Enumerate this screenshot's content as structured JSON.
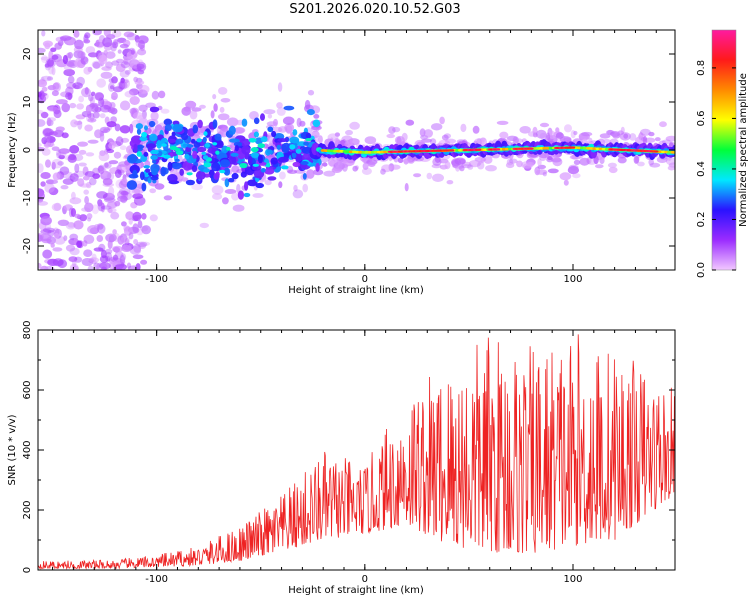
{
  "title": "S201.2026.020.10.52.G03",
  "chart_data": [
    {
      "type": "heatmap",
      "title": "S201.2026.020.10.52.G03",
      "xlabel": "Height of straight line (km)",
      "ylabel": "Frequency (Hz)",
      "xlim": [
        -157,
        149
      ],
      "ylim": [
        -25,
        25
      ],
      "x_ticks": [
        "-100",
        "0",
        "100"
      ],
      "y_ticks": [
        "-20",
        "-10",
        "0",
        "10",
        "20"
      ],
      "colorbar": {
        "label": "Normalized spectral amplitude",
        "range": [
          0.0,
          0.95
        ],
        "ticks": [
          "0.0",
          "0.2",
          "0.4",
          "0.6",
          "0.8"
        ],
        "colors": [
          "#f2c8ff",
          "#9b2cff",
          "#2a12ff",
          "#00e8ff",
          "#00ff3a",
          "#ffff00",
          "#ff8a00",
          "#ff1a1a",
          "#ff1aa0"
        ]
      },
      "ridge": {
        "x": [
          -110,
          -80,
          -50,
          -25,
          0,
          50,
          100,
          149
        ],
        "frequency": [
          -1,
          -0.5,
          -1,
          0,
          -0.5,
          0,
          0.5,
          -0.5
        ]
      }
    },
    {
      "type": "line",
      "xlabel": "Height of straight line (km)",
      "ylabel": "SNR (10 * v/v)",
      "xlim": [
        -157,
        149
      ],
      "ylim": [
        0,
        800
      ],
      "x_ticks": [
        "-100",
        "0",
        "100"
      ],
      "y_ticks": [
        "0",
        "200",
        "400",
        "600",
        "800"
      ],
      "series": [
        {
          "name": "SNR",
          "color": "#ee2222"
        }
      ],
      "envelope": {
        "x": [
          -157,
          -120,
          -100,
          -80,
          -60,
          -40,
          -20,
          0,
          20,
          40,
          60,
          80,
          100,
          120,
          149
        ],
        "low": [
          5,
          5,
          10,
          15,
          30,
          60,
          100,
          120,
          150,
          80,
          60,
          50,
          80,
          100,
          250
        ],
        "high": [
          30,
          35,
          50,
          80,
          150,
          250,
          400,
          350,
          600,
          700,
          800,
          750,
          800,
          750,
          600
        ]
      }
    }
  ]
}
